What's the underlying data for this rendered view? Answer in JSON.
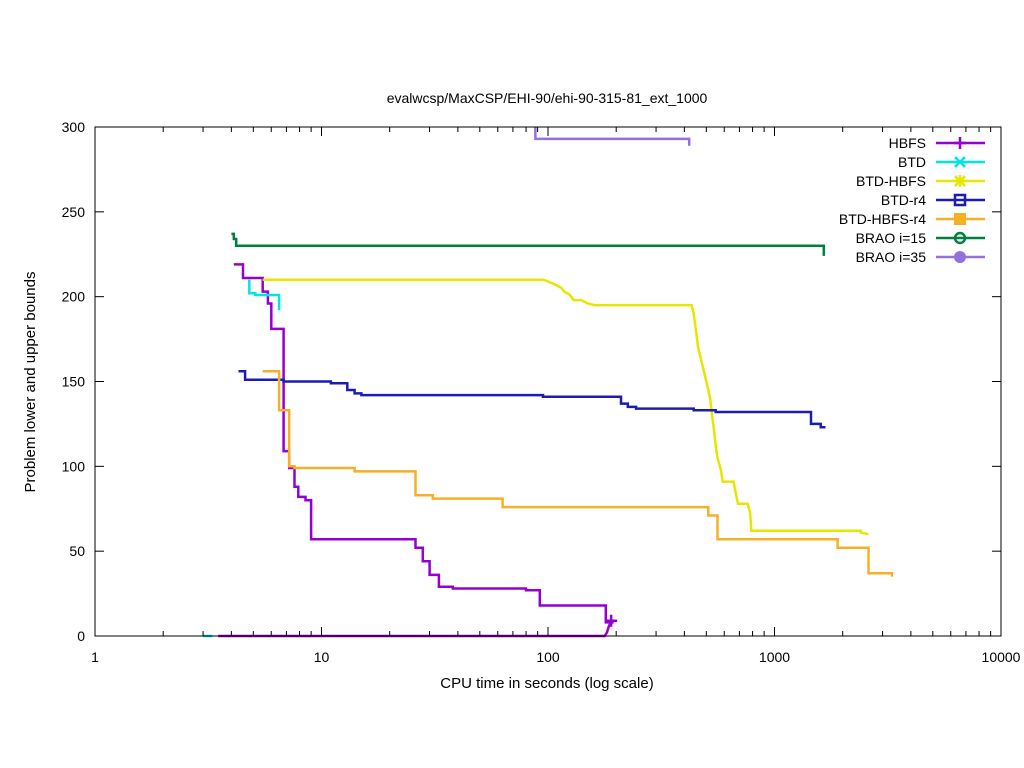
{
  "chart_data": {
    "type": "line",
    "title": "evalwcsp/MaxCSP/EHI-90/ehi-90-315-81_ext_1000",
    "xlabel": "CPU time in seconds (log scale)",
    "ylabel": "Problem lower and upper bounds",
    "xscale": "log",
    "xlim": [
      1,
      10000
    ],
    "ylim": [
      0,
      300
    ],
    "xticks": [
      {
        "value": 1,
        "label": "1"
      },
      {
        "value": 10,
        "label": "10"
      },
      {
        "value": 100,
        "label": "100"
      },
      {
        "value": 1000,
        "label": "1000"
      },
      {
        "value": 10000,
        "label": "10000"
      }
    ],
    "yticks": [
      {
        "value": 0,
        "label": "0"
      },
      {
        "value": 50,
        "label": "50"
      },
      {
        "value": 100,
        "label": "100"
      },
      {
        "value": 150,
        "label": "150"
      },
      {
        "value": 200,
        "label": "200"
      },
      {
        "value": 250,
        "label": "250"
      },
      {
        "value": 300,
        "label": "300"
      }
    ],
    "legend_position": "top-right",
    "series": [
      {
        "name": "HBFS",
        "color": "#9400d3",
        "marker": "plus",
        "upper": [
          [
            4.1,
            219
          ],
          [
            4.5,
            219
          ],
          [
            4.5,
            211
          ],
          [
            5.5,
            211
          ],
          [
            5.5,
            203
          ],
          [
            5.8,
            203
          ],
          [
            5.8,
            196
          ],
          [
            6.0,
            196
          ],
          [
            6.0,
            181
          ],
          [
            6.8,
            181
          ],
          [
            6.8,
            109
          ],
          [
            7.2,
            109
          ],
          [
            7.2,
            99
          ],
          [
            7.6,
            99
          ],
          [
            7.6,
            88
          ],
          [
            7.9,
            88
          ],
          [
            7.9,
            82
          ],
          [
            8.5,
            82
          ],
          [
            8.5,
            80
          ],
          [
            9.0,
            80
          ],
          [
            9.0,
            57
          ],
          [
            26,
            57
          ],
          [
            26,
            52
          ],
          [
            28,
            52
          ],
          [
            28,
            44
          ],
          [
            30,
            44
          ],
          [
            30,
            36
          ],
          [
            33,
            36
          ],
          [
            33,
            29
          ],
          [
            38,
            29
          ],
          [
            38,
            28
          ],
          [
            80,
            28
          ],
          [
            80,
            27
          ],
          [
            92,
            27
          ],
          [
            92,
            18
          ],
          [
            180,
            18
          ],
          [
            180,
            8
          ],
          [
            195,
            8
          ]
        ],
        "lower": [
          [
            3.5,
            0
          ],
          [
            178,
            0
          ],
          [
            182,
            2
          ],
          [
            186,
            6
          ],
          [
            190,
            8
          ]
        ],
        "markers": [
          [
            190,
            9
          ]
        ]
      },
      {
        "name": "BTD",
        "color": "#00e5e5",
        "marker": "cross",
        "upper": [
          [
            4.8,
            210
          ],
          [
            4.8,
            202
          ],
          [
            5.1,
            202
          ],
          [
            5.1,
            201
          ],
          [
            6.5,
            201
          ],
          [
            6.5,
            192
          ]
        ],
        "lower": [
          [
            3.0,
            0
          ],
          [
            3.3,
            0
          ]
        ],
        "markers": []
      },
      {
        "name": "BTD-HBFS",
        "color": "#e6e600",
        "marker": "star",
        "upper": [
          [
            5.5,
            210
          ],
          [
            95,
            210
          ],
          [
            100,
            209
          ],
          [
            108,
            207
          ],
          [
            115,
            205
          ],
          [
            118,
            203
          ],
          [
            125,
            201
          ],
          [
            130,
            198
          ],
          [
            140,
            198
          ],
          [
            150,
            196
          ],
          [
            160,
            195
          ],
          [
            430,
            195
          ],
          [
            440,
            190
          ],
          [
            450,
            180
          ],
          [
            460,
            170
          ],
          [
            470,
            165
          ],
          [
            480,
            160
          ],
          [
            490,
            155
          ],
          [
            500,
            150
          ],
          [
            510,
            145
          ],
          [
            520,
            140
          ],
          [
            530,
            130
          ],
          [
            540,
            122
          ],
          [
            550,
            112
          ],
          [
            560,
            105
          ],
          [
            580,
            98
          ],
          [
            590,
            91
          ],
          [
            660,
            91
          ],
          [
            670,
            86
          ],
          [
            690,
            78
          ],
          [
            760,
            78
          ],
          [
            780,
            73
          ],
          [
            790,
            62
          ],
          [
            2400,
            62
          ],
          [
            2400,
            61
          ],
          [
            2600,
            60
          ]
        ],
        "lower": [],
        "markers": []
      },
      {
        "name": "BTD-r4",
        "color": "#1c1cb3",
        "marker": "box",
        "upper": [
          [
            4.3,
            156
          ],
          [
            4.6,
            156
          ],
          [
            4.6,
            151
          ],
          [
            6.8,
            151
          ],
          [
            6.8,
            150
          ],
          [
            11,
            150
          ],
          [
            11,
            149
          ],
          [
            13,
            149
          ],
          [
            13,
            145
          ],
          [
            14,
            145
          ],
          [
            14,
            143
          ],
          [
            15,
            143
          ],
          [
            15,
            142
          ],
          [
            95,
            142
          ],
          [
            95,
            141
          ],
          [
            210,
            141
          ],
          [
            210,
            137
          ],
          [
            225,
            137
          ],
          [
            225,
            135
          ],
          [
            245,
            135
          ],
          [
            245,
            134
          ],
          [
            440,
            134
          ],
          [
            440,
            133
          ],
          [
            550,
            133
          ],
          [
            550,
            132
          ],
          [
            1450,
            132
          ],
          [
            1450,
            125
          ],
          [
            1600,
            125
          ],
          [
            1600,
            123
          ],
          [
            1680,
            123
          ]
        ],
        "lower": [],
        "markers": []
      },
      {
        "name": "BTD-HBFS-r4",
        "color": "#f5b025",
        "marker": "fbox",
        "upper": [
          [
            5.5,
            156
          ],
          [
            6.5,
            156
          ],
          [
            6.5,
            133
          ],
          [
            7.2,
            133
          ],
          [
            7.2,
            100
          ],
          [
            7.6,
            100
          ],
          [
            7.6,
            99
          ],
          [
            14,
            99
          ],
          [
            14,
            97
          ],
          [
            26,
            97
          ],
          [
            26,
            83
          ],
          [
            31,
            83
          ],
          [
            31,
            81
          ],
          [
            63,
            81
          ],
          [
            63,
            76
          ],
          [
            510,
            76
          ],
          [
            510,
            71
          ],
          [
            560,
            71
          ],
          [
            560,
            57
          ],
          [
            1900,
            57
          ],
          [
            1900,
            52
          ],
          [
            2600,
            52
          ],
          [
            2600,
            37
          ],
          [
            3300,
            37
          ],
          [
            3300,
            35
          ]
        ],
        "lower": [],
        "markers": []
      },
      {
        "name": "BRAO i=15",
        "color": "#008040",
        "marker": "circle",
        "upper": [
          [
            4.0,
            237
          ],
          [
            4.1,
            237
          ],
          [
            4.1,
            234
          ],
          [
            4.2,
            234
          ],
          [
            4.2,
            230
          ],
          [
            1650,
            230
          ],
          [
            1650,
            224
          ]
        ],
        "lower": [],
        "markers": []
      },
      {
        "name": "BRAO i=35",
        "color": "#9370db",
        "marker": "fcircle",
        "upper": [
          [
            88,
            300
          ],
          [
            88,
            293
          ],
          [
            420,
            293
          ],
          [
            420,
            289
          ]
        ],
        "lower": [],
        "markers": []
      }
    ]
  }
}
